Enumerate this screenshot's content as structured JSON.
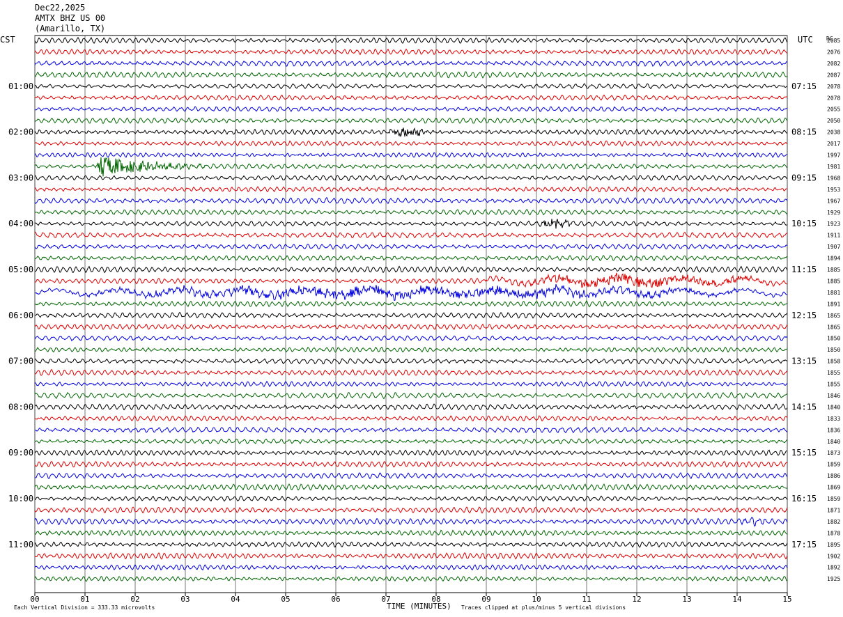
{
  "header": {
    "date": "Dec22,2025",
    "station": "AMTX BHZ US 00",
    "location": "(Amarillo, TX)"
  },
  "left_zone": "CST",
  "right_zone": "UTC",
  "dc_label": "DC",
  "footer": {
    "scale_note": "Each Vertical Division =  333.33 microvolts",
    "x_title": "TIME (MINUTES)",
    "clip_note": "Traces clipped at plus/minus 5 vertical divisions"
  },
  "colors": {
    "trace_cycle": [
      "#000000",
      "#dd0000",
      "#0000dd",
      "#006600"
    ],
    "grid": "#333333"
  },
  "chart_data": {
    "type": "line",
    "title": "",
    "xlabel": "TIME (MINUTES)",
    "ylabel": "",
    "x_ticks": [
      "00",
      "01",
      "02",
      "03",
      "04",
      "05",
      "06",
      "07",
      "08",
      "09",
      "10",
      "11",
      "12",
      "13",
      "14",
      "15"
    ],
    "xlim": [
      0,
      15
    ],
    "traces_per_hour": 4,
    "num_traces": 48,
    "left_hour_labels": [
      "01:00",
      "02:00",
      "03:00",
      "04:00",
      "05:00",
      "06:00",
      "07:00",
      "08:00",
      "09:00",
      "10:00",
      "11:00"
    ],
    "right_hour_labels": [
      "07:15",
      "08:15",
      "09:15",
      "10:15",
      "11:15",
      "12:15",
      "13:15",
      "14:15",
      "15:15",
      "16:15",
      "17:15"
    ],
    "dc_offsets": [
      "2085",
      "2076",
      "2082",
      "2087",
      "2078",
      "2078",
      "2055",
      "2050",
      "2038",
      "2017",
      "1997",
      "1981",
      "1968",
      "1953",
      "1967",
      "1929",
      "1923",
      "1911",
      "1907",
      "1894",
      "1885",
      "1885",
      "1881",
      "1891",
      "1865",
      "1865",
      "1850",
      "1850",
      "1858",
      "1855",
      "1855",
      "1846",
      "1840",
      "1833",
      "1836",
      "1840",
      "1873",
      "1859",
      "1886",
      "1869",
      "1859",
      "1871",
      "1882",
      "1878",
      "1895",
      "1902",
      "1892",
      "1925"
    ],
    "notable_events": [
      {
        "trace_index": 11,
        "start_min": 1.2,
        "duration_min": 2.2,
        "amplitude": "large",
        "color": "green"
      },
      {
        "trace_index": 8,
        "start_min": 7.0,
        "duration_min": 0.9,
        "amplitude": "medium",
        "color": "black"
      },
      {
        "trace_index": 16,
        "start_min": 10.0,
        "duration_min": 0.8,
        "amplitude": "medium",
        "color": "black"
      },
      {
        "trace_index": 21,
        "start_min": 9.0,
        "duration_min": 6.0,
        "amplitude": "medium",
        "color": "red"
      },
      {
        "trace_index": 22,
        "start_min": 0.0,
        "duration_min": 15.0,
        "amplitude": "medium",
        "color": "blue"
      },
      {
        "trace_index": 42,
        "start_min": 14.0,
        "duration_min": 0.6,
        "amplitude": "small",
        "color": "blue"
      }
    ]
  }
}
